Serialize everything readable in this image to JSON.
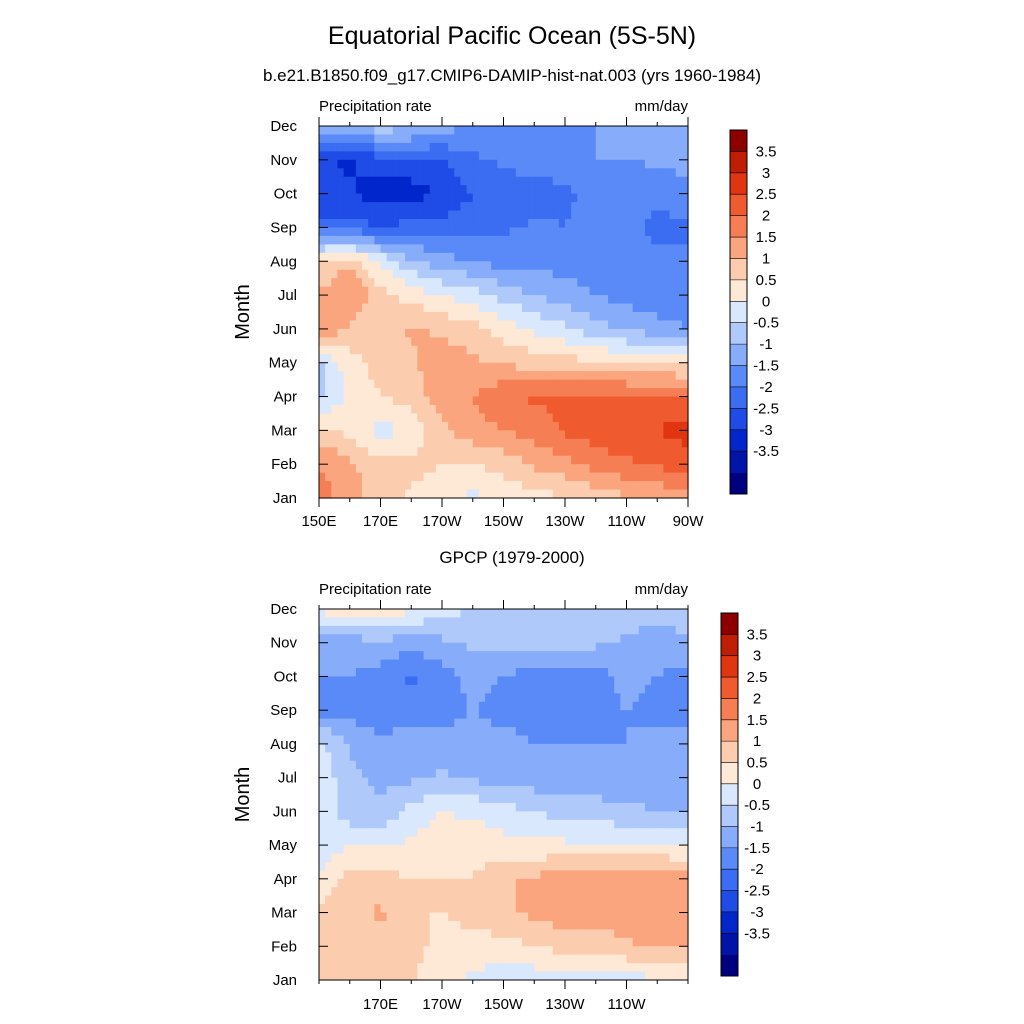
{
  "title": "Equatorial Pacific Ocean (5S-5N)",
  "subtitle": "b.e21.B1850.f09_g17.CMIP6-DAMIP-hist-nat.003 (yrs 1960-1984)",
  "colors": [
    "#00007f",
    "#0014a8",
    "#0026cc",
    "#1f4be6",
    "#3b6df2",
    "#5a8af7",
    "#86acfa",
    "#b0c9fb",
    "#d9e8fd",
    "#fde9d6",
    "#fcccae",
    "#fba57f",
    "#f67e55",
    "#ef5a2f",
    "#e03511",
    "#bf1e02",
    "#8c0000"
  ],
  "chart_data": [
    {
      "type": "heatmap",
      "panel_title": "",
      "left_label": "Precipitation rate",
      "right_label": "mm/day",
      "ylabel": "Month",
      "y_tick_labels": [
        "Jan",
        "Feb",
        "Mar",
        "Apr",
        "May",
        "Jun",
        "Jul",
        "Aug",
        "Sep",
        "Oct",
        "Nov",
        "Dec"
      ],
      "x_tick_labels": [
        "150E",
        "170E",
        "170W",
        "150W",
        "130W",
        "110W",
        "90W"
      ],
      "xlim": [
        150,
        270
      ],
      "x_tick_values": [
        150,
        170,
        190,
        210,
        230,
        250,
        270
      ],
      "colorbar_labels": [
        "3.5",
        "3",
        "2.5",
        "2",
        "1.5",
        "1",
        "0.5",
        "0",
        "-0.5",
        "-1",
        "-1.5",
        "-2",
        "-2.5",
        "-3",
        "-3.5"
      ],
      "levels": [
        -4,
        -3.5,
        -3,
        -2.5,
        -2,
        -1.5,
        -1,
        -0.5,
        0,
        0.5,
        1,
        1.5,
        2,
        2.5,
        3,
        3.5,
        4
      ],
      "x": [
        150,
        160,
        170,
        180,
        190,
        200,
        210,
        220,
        230,
        240,
        250,
        260,
        270
      ],
      "grid": [
        [
          2.2,
          1.8,
          1.2,
          0.9,
          0.6,
          0.4,
          0.6,
          0.8,
          1.0,
          1.2,
          1.4,
          1.6,
          1.8
        ],
        [
          2.0,
          1.6,
          1.2,
          1.2,
          1.0,
          1.0,
          1.2,
          1.6,
          1.8,
          2.2,
          2.4,
          2.6,
          2.8
        ],
        [
          1.2,
          0.8,
          0.3,
          0.6,
          1.4,
          1.8,
          2.0,
          2.2,
          2.6,
          2.8,
          3.0,
          3.0,
          3.2
        ],
        [
          -0.2,
          0.6,
          1.0,
          1.2,
          1.8,
          2.0,
          2.4,
          2.6,
          2.6,
          2.6,
          2.6,
          2.6,
          2.6
        ],
        [
          -0.1,
          0.8,
          1.2,
          1.4,
          1.8,
          1.6,
          1.4,
          1.3,
          1.2,
          1.1,
          1.0,
          0.9,
          0.8
        ],
        [
          2.0,
          1.4,
          1.2,
          1.6,
          1.4,
          1.2,
          0.8,
          0.4,
          0.1,
          -0.3,
          -0.6,
          -0.8,
          -1.0
        ],
        [
          1.6,
          2.0,
          1.2,
          0.8,
          0.5,
          0.2,
          -0.2,
          -0.5,
          -0.8,
          -1.0,
          -1.2,
          -1.3,
          -1.4
        ],
        [
          1.0,
          1.4,
          0.4,
          -0.4,
          -0.8,
          -1.0,
          -1.2,
          -1.2,
          -1.2,
          -1.2,
          -1.3,
          -1.4,
          -1.4
        ],
        [
          -1.8,
          -1.8,
          -2.0,
          -1.8,
          -1.8,
          -1.8,
          -1.6,
          -1.4,
          -1.5,
          -1.2,
          -1.4,
          -1.6,
          -1.6
        ],
        [
          -2.4,
          -2.4,
          -2.8,
          -2.8,
          -2.4,
          -2.0,
          -1.8,
          -1.8,
          -1.6,
          -1.4,
          -1.5,
          -1.4,
          -1.2
        ],
        [
          -2.4,
          -2.6,
          -2.2,
          -2.0,
          -2.0,
          -1.6,
          -1.4,
          -1.2,
          -1.2,
          -1.0,
          -1.0,
          -0.9,
          -0.8
        ],
        [
          -0.6,
          -0.4,
          -0.2,
          -0.4,
          -0.8,
          -1.0,
          -1.2,
          -1.2,
          -1.0,
          -1.0,
          -1.0,
          -1.0,
          -1.0
        ]
      ]
    },
    {
      "type": "heatmap",
      "panel_title": "GPCP (1979-2000)",
      "left_label": "Precipitation rate",
      "right_label": "mm/day",
      "ylabel": "Month",
      "y_tick_labels": [
        "Jan",
        "Feb",
        "Mar",
        "Apr",
        "May",
        "Jun",
        "Jul",
        "Aug",
        "Sep",
        "Oct",
        "Nov",
        "Dec"
      ],
      "x_tick_labels": [
        "170E",
        "170W",
        "150W",
        "130W",
        "110W"
      ],
      "xlim": [
        150,
        270
      ],
      "x_tick_values": [
        170,
        190,
        210,
        230,
        250
      ],
      "colorbar_labels": [
        "3.5",
        "3",
        "2.5",
        "2",
        "1.5",
        "1",
        "0.5",
        "0",
        "-0.5",
        "-1",
        "-1.5",
        "-2",
        "-2.5",
        "-3",
        "-3.5"
      ],
      "levels": [
        -4,
        -3.5,
        -3,
        -2.5,
        -2,
        -1.5,
        -1,
        -0.5,
        0,
        0.5,
        1,
        1.5,
        2,
        2.5,
        3,
        3.5,
        4
      ],
      "x": [
        150,
        160,
        170,
        180,
        190,
        200,
        210,
        220,
        230,
        240,
        250,
        260,
        270
      ],
      "grid": [
        [
          1.0,
          1.2,
          1.4,
          1.0,
          0.8,
          0.4,
          0.2,
          0.2,
          0.2,
          0.2,
          0.3,
          0.4,
          0.5
        ],
        [
          1.4,
          1.2,
          1.4,
          1.2,
          0.8,
          0.8,
          0.8,
          1.0,
          1.2,
          1.2,
          1.4,
          1.6,
          1.6
        ],
        [
          1.2,
          1.2,
          1.6,
          1.0,
          1.0,
          1.2,
          1.4,
          1.6,
          1.8,
          1.8,
          1.8,
          1.9,
          1.8
        ],
        [
          0.6,
          1.2,
          1.2,
          1.0,
          1.0,
          1.0,
          1.4,
          1.6,
          1.8,
          1.8,
          1.8,
          1.8,
          1.8
        ],
        [
          0.0,
          0.6,
          0.4,
          0.6,
          0.8,
          0.8,
          0.7,
          0.6,
          0.6,
          0.6,
          0.6,
          0.6,
          0.4
        ],
        [
          0.4,
          -0.4,
          -0.4,
          0.2,
          0.5,
          0.4,
          0.2,
          0.0,
          -0.2,
          -0.3,
          -0.4,
          -0.5,
          -0.6
        ],
        [
          0.4,
          -0.4,
          -0.6,
          -0.6,
          -0.4,
          -0.6,
          -0.8,
          -0.8,
          -0.8,
          -0.8,
          -0.8,
          -0.8,
          -0.8
        ],
        [
          0.2,
          -0.6,
          -0.8,
          -0.8,
          -0.8,
          -0.8,
          -0.8,
          -1.0,
          -1.0,
          -1.0,
          -1.0,
          -0.8,
          -0.8
        ],
        [
          -1.2,
          -1.2,
          -1.4,
          -1.2,
          -1.2,
          -1.0,
          -1.2,
          -1.2,
          -1.2,
          -1.2,
          -1.0,
          -1.2,
          -1.2
        ],
        [
          -1.0,
          -1.0,
          -1.2,
          -1.6,
          -1.2,
          -0.8,
          -1.0,
          -1.2,
          -1.2,
          -1.2,
          -0.8,
          -1.0,
          -1.2
        ],
        [
          -0.8,
          -0.8,
          -0.6,
          -0.8,
          -0.6,
          -0.4,
          -0.4,
          -0.4,
          -0.3,
          -0.4,
          -0.6,
          -0.8,
          -0.6
        ],
        [
          0.6,
          1.0,
          1.0,
          0.6,
          0.2,
          0.0,
          -0.2,
          -0.2,
          -0.2,
          -0.2,
          -0.2,
          -0.2,
          -0.2
        ]
      ]
    }
  ]
}
